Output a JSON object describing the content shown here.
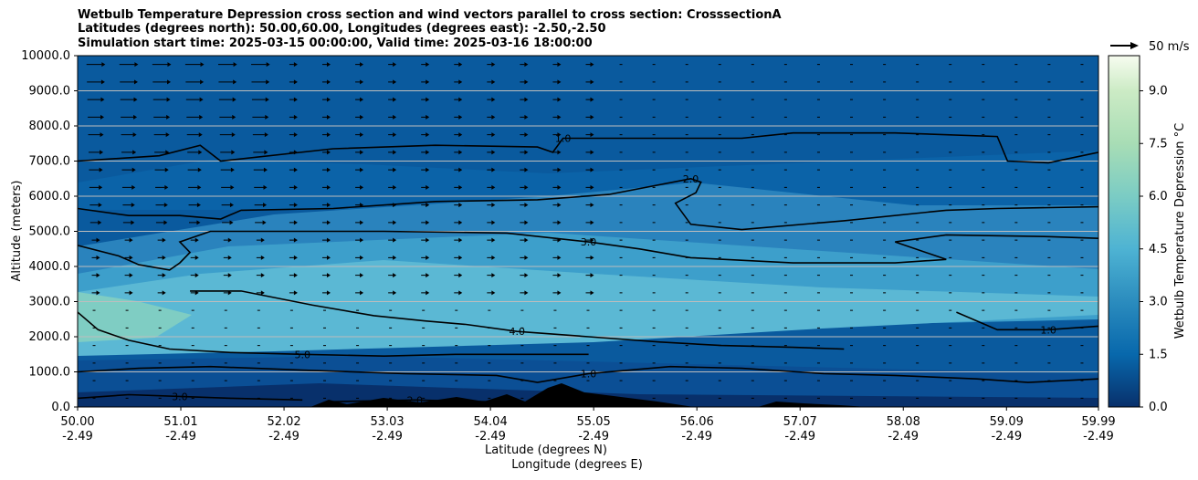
{
  "chart_data": {
    "type": "heatmap",
    "title_lines": [
      "Wetbulb Temperature Depression cross section and wind vectors parallel to cross section: CrosssectionA",
      "Latitudes (degrees north): 50.00,60.00, Longitudes (degrees east): -2.50,-2.50",
      "Simulation start time: 2025-03-15 00:00:00, Valid time: 2025-03-16 18:00:00"
    ],
    "ylabel": "Altitude (meters)",
    "xlabel_lines": [
      "Latitude (degrees N)",
      "Longitude (degrees E)"
    ],
    "ylim": [
      0,
      10000
    ],
    "xlim": [
      50.0,
      59.99
    ],
    "y_ticks": [
      "0.0",
      "1000.0",
      "2000.0",
      "3000.0",
      "4000.0",
      "5000.0",
      "6000.0",
      "7000.0",
      "8000.0",
      "9000.0",
      "10000.0"
    ],
    "x_ticks": [
      {
        "lat": "50.00",
        "lon": "-2.49"
      },
      {
        "lat": "51.01",
        "lon": "-2.49"
      },
      {
        "lat": "52.02",
        "lon": "-2.49"
      },
      {
        "lat": "53.03",
        "lon": "-2.49"
      },
      {
        "lat": "54.04",
        "lon": "-2.49"
      },
      {
        "lat": "55.05",
        "lon": "-2.49"
      },
      {
        "lat": "56.06",
        "lon": "-2.49"
      },
      {
        "lat": "57.07",
        "lon": "-2.49"
      },
      {
        "lat": "58.08",
        "lon": "-2.49"
      },
      {
        "lat": "59.09",
        "lon": "-2.49"
      },
      {
        "lat": "59.99",
        "lon": "-2.49"
      }
    ],
    "horizontal_grid": true,
    "colorbar": {
      "label": "Wetbulb Temperature Depression °C",
      "range": [
        0,
        10
      ],
      "ticks": [
        "0.0",
        "1.5",
        "3.0",
        "4.5",
        "6.0",
        "7.5",
        "9.0"
      ],
      "colormap": "GnBu_r"
    },
    "quiver_key": "50 m/s",
    "contours": [
      {
        "label": "1.0",
        "level": 1.0,
        "points": [
          [
            50.0,
            7000
          ],
          [
            50.8,
            7150
          ],
          [
            51.2,
            7450
          ],
          [
            51.4,
            7000
          ],
          [
            52.5,
            7350
          ],
          [
            53.5,
            7450
          ],
          [
            54.5,
            7400
          ],
          [
            54.65,
            7250
          ],
          [
            54.75,
            7650
          ],
          [
            55.5,
            7650
          ],
          [
            56.5,
            7650
          ],
          [
            57.0,
            7800
          ],
          [
            58.0,
            7800
          ],
          [
            59.0,
            7700
          ],
          [
            59.1,
            7000
          ],
          [
            59.5,
            6950
          ],
          [
            59.99,
            7250
          ]
        ]
      },
      {
        "label": "2.0",
        "level": 2.0,
        "points": [
          [
            50.0,
            5650
          ],
          [
            50.5,
            5450
          ],
          [
            51.0,
            5450
          ],
          [
            51.4,
            5350
          ],
          [
            51.6,
            5600
          ],
          [
            52.5,
            5650
          ],
          [
            53.5,
            5850
          ],
          [
            54.5,
            5900
          ],
          [
            55.2,
            6050
          ],
          [
            56.0,
            6500
          ],
          [
            56.1,
            6400
          ],
          [
            56.05,
            6100
          ],
          [
            55.85,
            5800
          ],
          [
            56.0,
            5200
          ],
          [
            56.5,
            5050
          ],
          [
            57.5,
            5300
          ],
          [
            58.5,
            5600
          ],
          [
            59.0,
            5650
          ],
          [
            59.99,
            5700
          ]
        ]
      },
      {
        "label": "3.0",
        "level": 3.0,
        "points": [
          [
            50.0,
            4600
          ],
          [
            50.4,
            4300
          ],
          [
            50.6,
            4050
          ],
          [
            50.9,
            3900
          ],
          [
            51.0,
            4100
          ],
          [
            51.1,
            4400
          ],
          [
            51.0,
            4700
          ],
          [
            51.3,
            5000
          ],
          [
            53.0,
            5000
          ],
          [
            54.2,
            4950
          ],
          [
            55.0,
            4700
          ],
          [
            55.5,
            4500
          ],
          [
            56.0,
            4250
          ],
          [
            57.0,
            4100
          ],
          [
            58.0,
            4100
          ],
          [
            58.5,
            4200
          ],
          [
            58.0,
            4700
          ],
          [
            58.5,
            4900
          ],
          [
            59.5,
            4850
          ],
          [
            59.99,
            4800
          ]
        ]
      },
      {
        "label": "4.0",
        "level": 4.0,
        "points": [
          [
            51.1,
            3300
          ],
          [
            51.6,
            3300
          ],
          [
            52.3,
            2900
          ],
          [
            52.9,
            2600
          ],
          [
            53.4,
            2450
          ],
          [
            53.8,
            2350
          ],
          [
            54.3,
            2150
          ],
          [
            55.0,
            2000
          ],
          [
            55.7,
            1850
          ],
          [
            56.3,
            1750
          ],
          [
            57.0,
            1700
          ],
          [
            57.5,
            1650
          ]
        ]
      },
      {
        "label": "5.0",
        "level": 5.0,
        "points": [
          [
            50.0,
            2700
          ],
          [
            50.2,
            2200
          ],
          [
            50.5,
            1900
          ],
          [
            50.9,
            1650
          ],
          [
            51.5,
            1550
          ],
          [
            52.2,
            1500
          ],
          [
            53.0,
            1450
          ],
          [
            53.7,
            1500
          ],
          [
            54.4,
            1500
          ],
          [
            55.0,
            1500
          ]
        ]
      },
      {
        "label": "1.0",
        "level": 1.0,
        "points": [
          [
            50.0,
            1000
          ],
          [
            50.6,
            1100
          ],
          [
            51.3,
            1150
          ],
          [
            52.2,
            1050
          ],
          [
            53.2,
            950
          ],
          [
            54.1,
            900
          ],
          [
            54.5,
            700
          ],
          [
            55.0,
            950
          ],
          [
            55.8,
            1150
          ],
          [
            56.5,
            1100
          ],
          [
            57.3,
            950
          ],
          [
            58.0,
            900
          ],
          [
            58.8,
            800
          ],
          [
            59.3,
            700
          ],
          [
            59.99,
            800
          ]
        ]
      },
      {
        "label": "3.0",
        "level": 3.0,
        "points": [
          [
            50.0,
            250
          ],
          [
            50.5,
            350
          ],
          [
            51.0,
            300
          ],
          [
            51.5,
            250
          ],
          [
            52.2,
            200
          ]
        ]
      },
      {
        "label": "2.0",
        "level": 2.0,
        "points": [
          [
            52.5,
            150
          ],
          [
            53.3,
            200
          ],
          [
            54.0,
            150
          ]
        ]
      },
      {
        "label": "1.0",
        "level": 1.0,
        "points": [
          [
            58.6,
            2700
          ],
          [
            59.0,
            2200
          ],
          [
            59.5,
            2200
          ],
          [
            59.99,
            2300
          ]
        ]
      }
    ]
  }
}
